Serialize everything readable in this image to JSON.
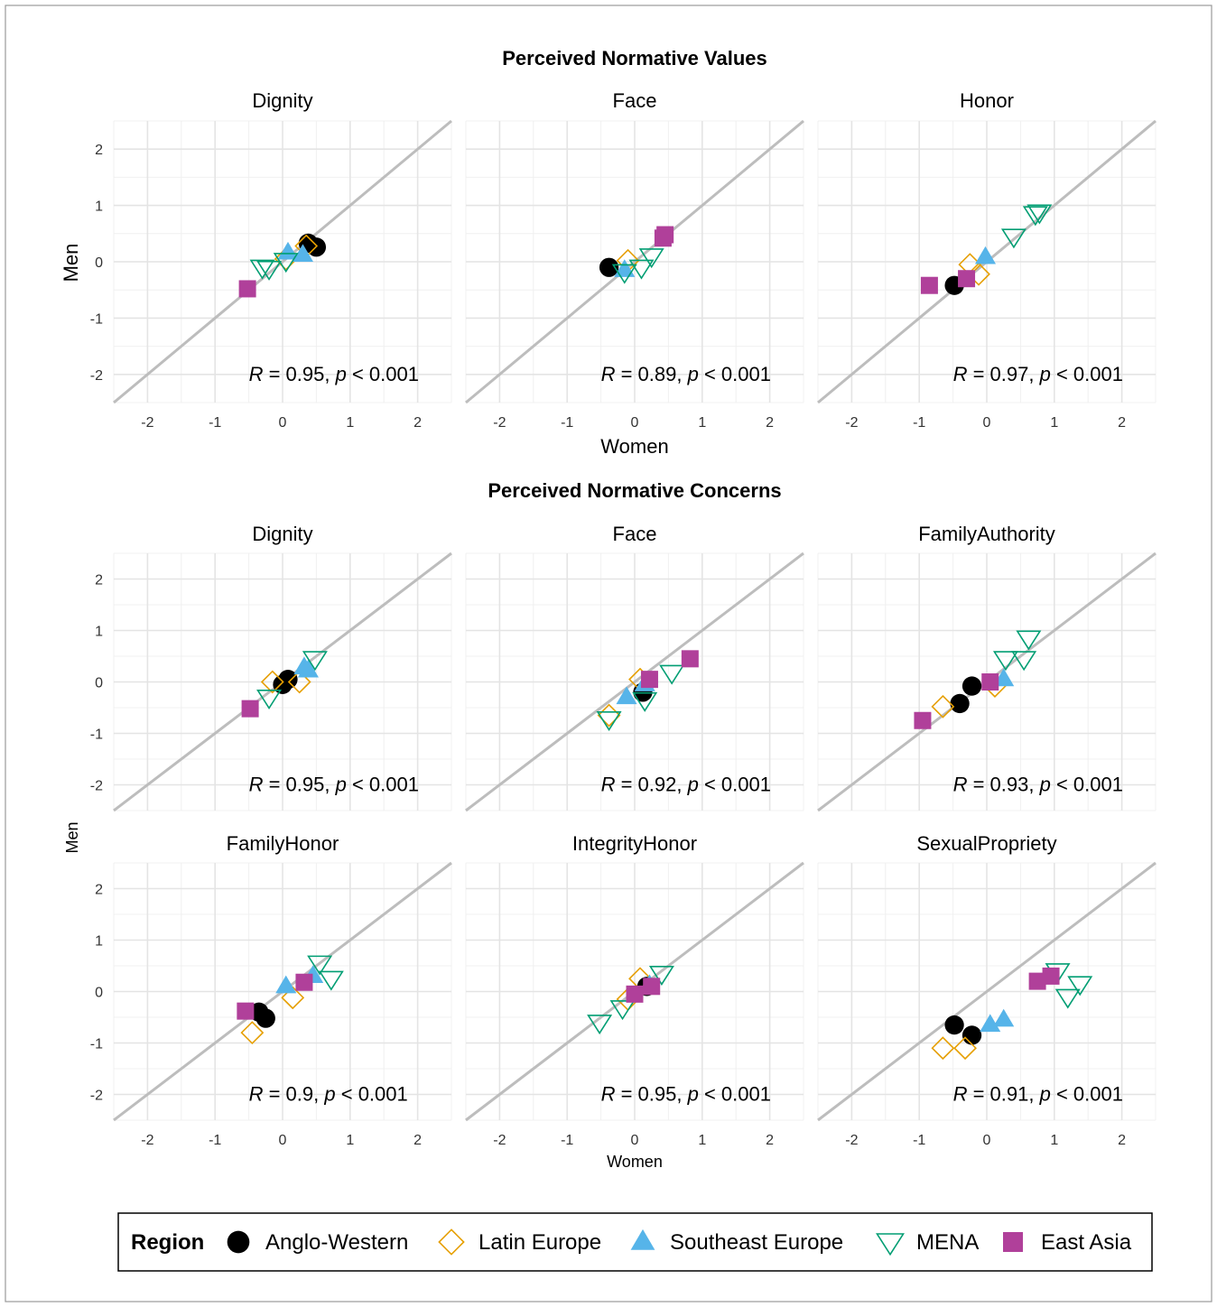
{
  "figure": {
    "section_values_title": "Perceived Normative Values",
    "section_concerns_title": "Perceived Normative Concerns",
    "values_xlabel": "Women",
    "values_ylabel": "Men",
    "concerns_xlabel": "Women",
    "concerns_ylabel": "Men"
  },
  "legend": {
    "title": "Region",
    "entries": [
      {
        "label": "Anglo-Western",
        "shape": "filled-circle",
        "color": "#000000"
      },
      {
        "label": "Latin Europe",
        "shape": "open-diamond",
        "color": "#E69F00"
      },
      {
        "label": "Southeast Europe",
        "shape": "filled-triangle-up",
        "color": "#56B4E9"
      },
      {
        "label": "MENA",
        "shape": "open-triangle-down",
        "color": "#009E73"
      },
      {
        "label": "East Asia",
        "shape": "filled-square",
        "color": "#B0409A"
      }
    ]
  },
  "chart_data": [
    {
      "type": "scatter",
      "title": "Dignity",
      "group": "Perceived Normative Values",
      "xlabel": "Women",
      "ylabel": "Men",
      "xlim": [
        -2.5,
        2.5
      ],
      "ylim": [
        -2.5,
        2.5
      ],
      "ticks": [
        "-2",
        "-1",
        "0",
        "1",
        "2"
      ],
      "reference_line": "y = x",
      "annotation": {
        "r_label": "R",
        "r_value": "= 0.95,",
        "p_label": "p",
        "p_value": "< 0.001"
      },
      "series": [
        {
          "name": "Anglo-Western",
          "points": [
            [
              0.38,
              0.33
            ],
            [
              0.5,
              0.26
            ]
          ]
        },
        {
          "name": "Latin Europe",
          "points": [
            [
              0.35,
              0.28
            ],
            [
              0.05,
              0.05
            ]
          ]
        },
        {
          "name": "Southeast Europe",
          "points": [
            [
              0.08,
              0.16
            ],
            [
              0.3,
              0.12
            ]
          ]
        },
        {
          "name": "MENA",
          "points": [
            [
              -0.3,
              -0.1
            ],
            [
              -0.2,
              -0.12
            ],
            [
              0.05,
              0.02
            ]
          ]
        },
        {
          "name": "East Asia",
          "points": [
            [
              -0.52,
              -0.48
            ]
          ]
        }
      ]
    },
    {
      "type": "scatter",
      "title": "Face",
      "group": "Perceived Normative Values",
      "xlabel": "Women",
      "ylabel": "Men",
      "xlim": [
        -2.5,
        2.5
      ],
      "ylim": [
        -2.5,
        2.5
      ],
      "ticks": [
        "-2",
        "-1",
        "0",
        "1",
        "2"
      ],
      "reference_line": "y = x",
      "annotation": {
        "r_label": "R",
        "r_value": "= 0.89,",
        "p_label": "p",
        "p_value": "< 0.001"
      },
      "series": [
        {
          "name": "Anglo-Western",
          "points": [
            [
              -0.38,
              -0.1
            ]
          ]
        },
        {
          "name": "Latin Europe",
          "points": [
            [
              -0.1,
              0.02
            ]
          ]
        },
        {
          "name": "Southeast Europe",
          "points": [
            [
              -0.15,
              -0.15
            ]
          ]
        },
        {
          "name": "MENA",
          "points": [
            [
              -0.15,
              -0.18
            ],
            [
              0.1,
              -0.1
            ],
            [
              0.25,
              0.1
            ]
          ]
        },
        {
          "name": "East Asia",
          "points": [
            [
              0.42,
              0.42
            ],
            [
              0.45,
              0.48
            ]
          ]
        }
      ]
    },
    {
      "type": "scatter",
      "title": "Honor",
      "group": "Perceived Normative Values",
      "xlabel": "Women",
      "ylabel": "Men",
      "xlim": [
        -2.5,
        2.5
      ],
      "ylim": [
        -2.5,
        2.5
      ],
      "ticks": [
        "-2",
        "-1",
        "0",
        "1",
        "2"
      ],
      "reference_line": "y = x",
      "annotation": {
        "r_label": "R",
        "r_value": "= 0.97,",
        "p_label": "p",
        "p_value": "< 0.001"
      },
      "series": [
        {
          "name": "Anglo-Western",
          "points": [
            [
              -0.48,
              -0.42
            ]
          ]
        },
        {
          "name": "Latin Europe",
          "points": [
            [
              -0.25,
              -0.05
            ],
            [
              -0.12,
              -0.22
            ]
          ]
        },
        {
          "name": "Southeast Europe",
          "points": [
            [
              -0.02,
              0.08
            ]
          ]
        },
        {
          "name": "MENA",
          "points": [
            [
              0.4,
              0.45
            ],
            [
              0.72,
              0.85
            ],
            [
              0.78,
              0.88
            ]
          ]
        },
        {
          "name": "East Asia",
          "points": [
            [
              -0.85,
              -0.42
            ],
            [
              -0.3,
              -0.3
            ]
          ]
        }
      ]
    },
    {
      "type": "scatter",
      "title": "Dignity",
      "group": "Perceived Normative Concerns",
      "xlabel": "Women",
      "ylabel": "Men",
      "xlim": [
        -2.5,
        2.5
      ],
      "ylim": [
        -2.5,
        2.5
      ],
      "ticks": [
        "-2",
        "-1",
        "0",
        "1",
        "2"
      ],
      "reference_line": "y = x",
      "annotation": {
        "r_label": "R",
        "r_value": "= 0.95,",
        "p_label": "p",
        "p_value": "< 0.001"
      },
      "series": [
        {
          "name": "Anglo-Western",
          "points": [
            [
              0.0,
              -0.05
            ],
            [
              0.08,
              0.05
            ]
          ]
        },
        {
          "name": "Latin Europe",
          "points": [
            [
              -0.15,
              0.0
            ],
            [
              0.25,
              0.0
            ]
          ]
        },
        {
          "name": "Southeast Europe",
          "points": [
            [
              0.32,
              0.28
            ],
            [
              0.38,
              0.22
            ]
          ]
        },
        {
          "name": "MENA",
          "points": [
            [
              -0.2,
              -0.3
            ],
            [
              0.48,
              0.45
            ]
          ]
        },
        {
          "name": "East Asia",
          "points": [
            [
              -0.48,
              -0.52
            ]
          ]
        }
      ]
    },
    {
      "type": "scatter",
      "title": "Face",
      "group": "Perceived Normative Concerns",
      "xlabel": "Women",
      "ylabel": "Men",
      "xlim": [
        -2.5,
        2.5
      ],
      "ylim": [
        -2.5,
        2.5
      ],
      "ticks": [
        "-2",
        "-1",
        "0",
        "1",
        "2"
      ],
      "reference_line": "y = x",
      "annotation": {
        "r_label": "R",
        "r_value": "= 0.92,",
        "p_label": "p",
        "p_value": "< 0.001"
      },
      "series": [
        {
          "name": "Anglo-Western",
          "points": [
            [
              0.12,
              -0.2
            ]
          ]
        },
        {
          "name": "Latin Europe",
          "points": [
            [
              -0.38,
              -0.65
            ],
            [
              0.08,
              0.05
            ]
          ]
        },
        {
          "name": "Southeast Europe",
          "points": [
            [
              -0.12,
              -0.3
            ],
            [
              0.15,
              -0.05
            ]
          ]
        },
        {
          "name": "MENA",
          "points": [
            [
              -0.38,
              -0.72
            ],
            [
              0.15,
              -0.35
            ],
            [
              0.55,
              0.18
            ]
          ]
        },
        {
          "name": "East Asia",
          "points": [
            [
              0.22,
              0.05
            ],
            [
              0.82,
              0.45
            ]
          ]
        }
      ]
    },
    {
      "type": "scatter",
      "title": "FamilyAuthority",
      "group": "Perceived Normative Concerns",
      "xlabel": "Women",
      "ylabel": "Men",
      "xlim": [
        -2.5,
        2.5
      ],
      "ylim": [
        -2.5,
        2.5
      ],
      "ticks": [
        "-2",
        "-1",
        "0",
        "1",
        "2"
      ],
      "reference_line": "y = x",
      "annotation": {
        "r_label": "R",
        "r_value": "= 0.93,",
        "p_label": "p",
        "p_value": "< 0.001"
      },
      "series": [
        {
          "name": "Anglo-Western",
          "points": [
            [
              -0.4,
              -0.42
            ],
            [
              -0.22,
              -0.08
            ]
          ]
        },
        {
          "name": "Latin Europe",
          "points": [
            [
              -0.65,
              -0.48
            ],
            [
              0.12,
              -0.08
            ]
          ]
        },
        {
          "name": "Southeast Europe",
          "points": [
            [
              0.25,
              0.05
            ]
          ]
        },
        {
          "name": "MENA",
          "points": [
            [
              0.28,
              0.45
            ],
            [
              0.55,
              0.45
            ],
            [
              0.62,
              0.85
            ]
          ]
        },
        {
          "name": "East Asia",
          "points": [
            [
              -0.95,
              -0.75
            ],
            [
              0.05,
              0.0
            ]
          ]
        }
      ]
    },
    {
      "type": "scatter",
      "title": "FamilyHonor",
      "group": "Perceived Normative Concerns",
      "xlabel": "Women",
      "ylabel": "Men",
      "xlim": [
        -2.5,
        2.5
      ],
      "ylim": [
        -2.5,
        2.5
      ],
      "ticks": [
        "-2",
        "-1",
        "0",
        "1",
        "2"
      ],
      "reference_line": "y = x",
      "annotation": {
        "r_label": "R",
        "r_value": "= 0.9,",
        "p_label": "p",
        "p_value": "< 0.001"
      },
      "series": [
        {
          "name": "Anglo-Western",
          "points": [
            [
              -0.35,
              -0.4
            ],
            [
              -0.25,
              -0.52
            ]
          ]
        },
        {
          "name": "Latin Europe",
          "points": [
            [
              -0.45,
              -0.8
            ],
            [
              0.15,
              -0.12
            ]
          ]
        },
        {
          "name": "Southeast Europe",
          "points": [
            [
              0.05,
              0.1
            ],
            [
              0.45,
              0.3
            ]
          ]
        },
        {
          "name": "MENA",
          "points": [
            [
              0.55,
              0.55
            ],
            [
              0.72,
              0.25
            ]
          ]
        },
        {
          "name": "East Asia",
          "points": [
            [
              -0.55,
              -0.38
            ],
            [
              0.32,
              0.18
            ]
          ]
        }
      ]
    },
    {
      "type": "scatter",
      "title": "IntegrityHonor",
      "group": "Perceived Normative Concerns",
      "xlabel": "Women",
      "ylabel": "Men",
      "xlim": [
        -2.5,
        2.5
      ],
      "ylim": [
        -2.5,
        2.5
      ],
      "ticks": [
        "-2",
        "-1",
        "0",
        "1",
        "2"
      ],
      "reference_line": "y = x",
      "annotation": {
        "r_label": "R",
        "r_value": "= 0.95,",
        "p_label": "p",
        "p_value": "< 0.001"
      },
      "series": [
        {
          "name": "Anglo-Western",
          "points": [
            [
              0.18,
              0.1
            ]
          ]
        },
        {
          "name": "Latin Europe",
          "points": [
            [
              0.08,
              0.25
            ],
            [
              -0.1,
              -0.15
            ]
          ]
        },
        {
          "name": "Southeast Europe",
          "points": [
            [
              0.22,
              0.12
            ]
          ]
        },
        {
          "name": "MENA",
          "points": [
            [
              -0.52,
              -0.6
            ],
            [
              -0.18,
              -0.32
            ],
            [
              0.4,
              0.35
            ]
          ]
        },
        {
          "name": "East Asia",
          "points": [
            [
              0.0,
              -0.05
            ],
            [
              0.25,
              0.1
            ]
          ]
        }
      ]
    },
    {
      "type": "scatter",
      "title": "SexualPropriety",
      "group": "Perceived Normative Concerns",
      "xlabel": "Women",
      "ylabel": "Men",
      "xlim": [
        -2.5,
        2.5
      ],
      "ylim": [
        -2.5,
        2.5
      ],
      "ticks": [
        "-2",
        "-1",
        "0",
        "1",
        "2"
      ],
      "reference_line": "y = x",
      "annotation": {
        "r_label": "R",
        "r_value": "= 0.91,",
        "p_label": "p",
        "p_value": "< 0.001"
      },
      "series": [
        {
          "name": "Anglo-Western",
          "points": [
            [
              -0.48,
              -0.65
            ],
            [
              -0.22,
              -0.85
            ]
          ]
        },
        {
          "name": "Latin Europe",
          "points": [
            [
              -0.65,
              -1.1
            ],
            [
              -0.32,
              -1.1
            ]
          ]
        },
        {
          "name": "Southeast Europe",
          "points": [
            [
              0.05,
              -0.65
            ],
            [
              0.25,
              -0.55
            ]
          ]
        },
        {
          "name": "MENA",
          "points": [
            [
              1.05,
              0.4
            ],
            [
              1.2,
              -0.1
            ],
            [
              1.38,
              0.15
            ]
          ]
        },
        {
          "name": "East Asia",
          "points": [
            [
              0.75,
              0.2
            ],
            [
              0.95,
              0.3
            ]
          ]
        }
      ]
    }
  ]
}
